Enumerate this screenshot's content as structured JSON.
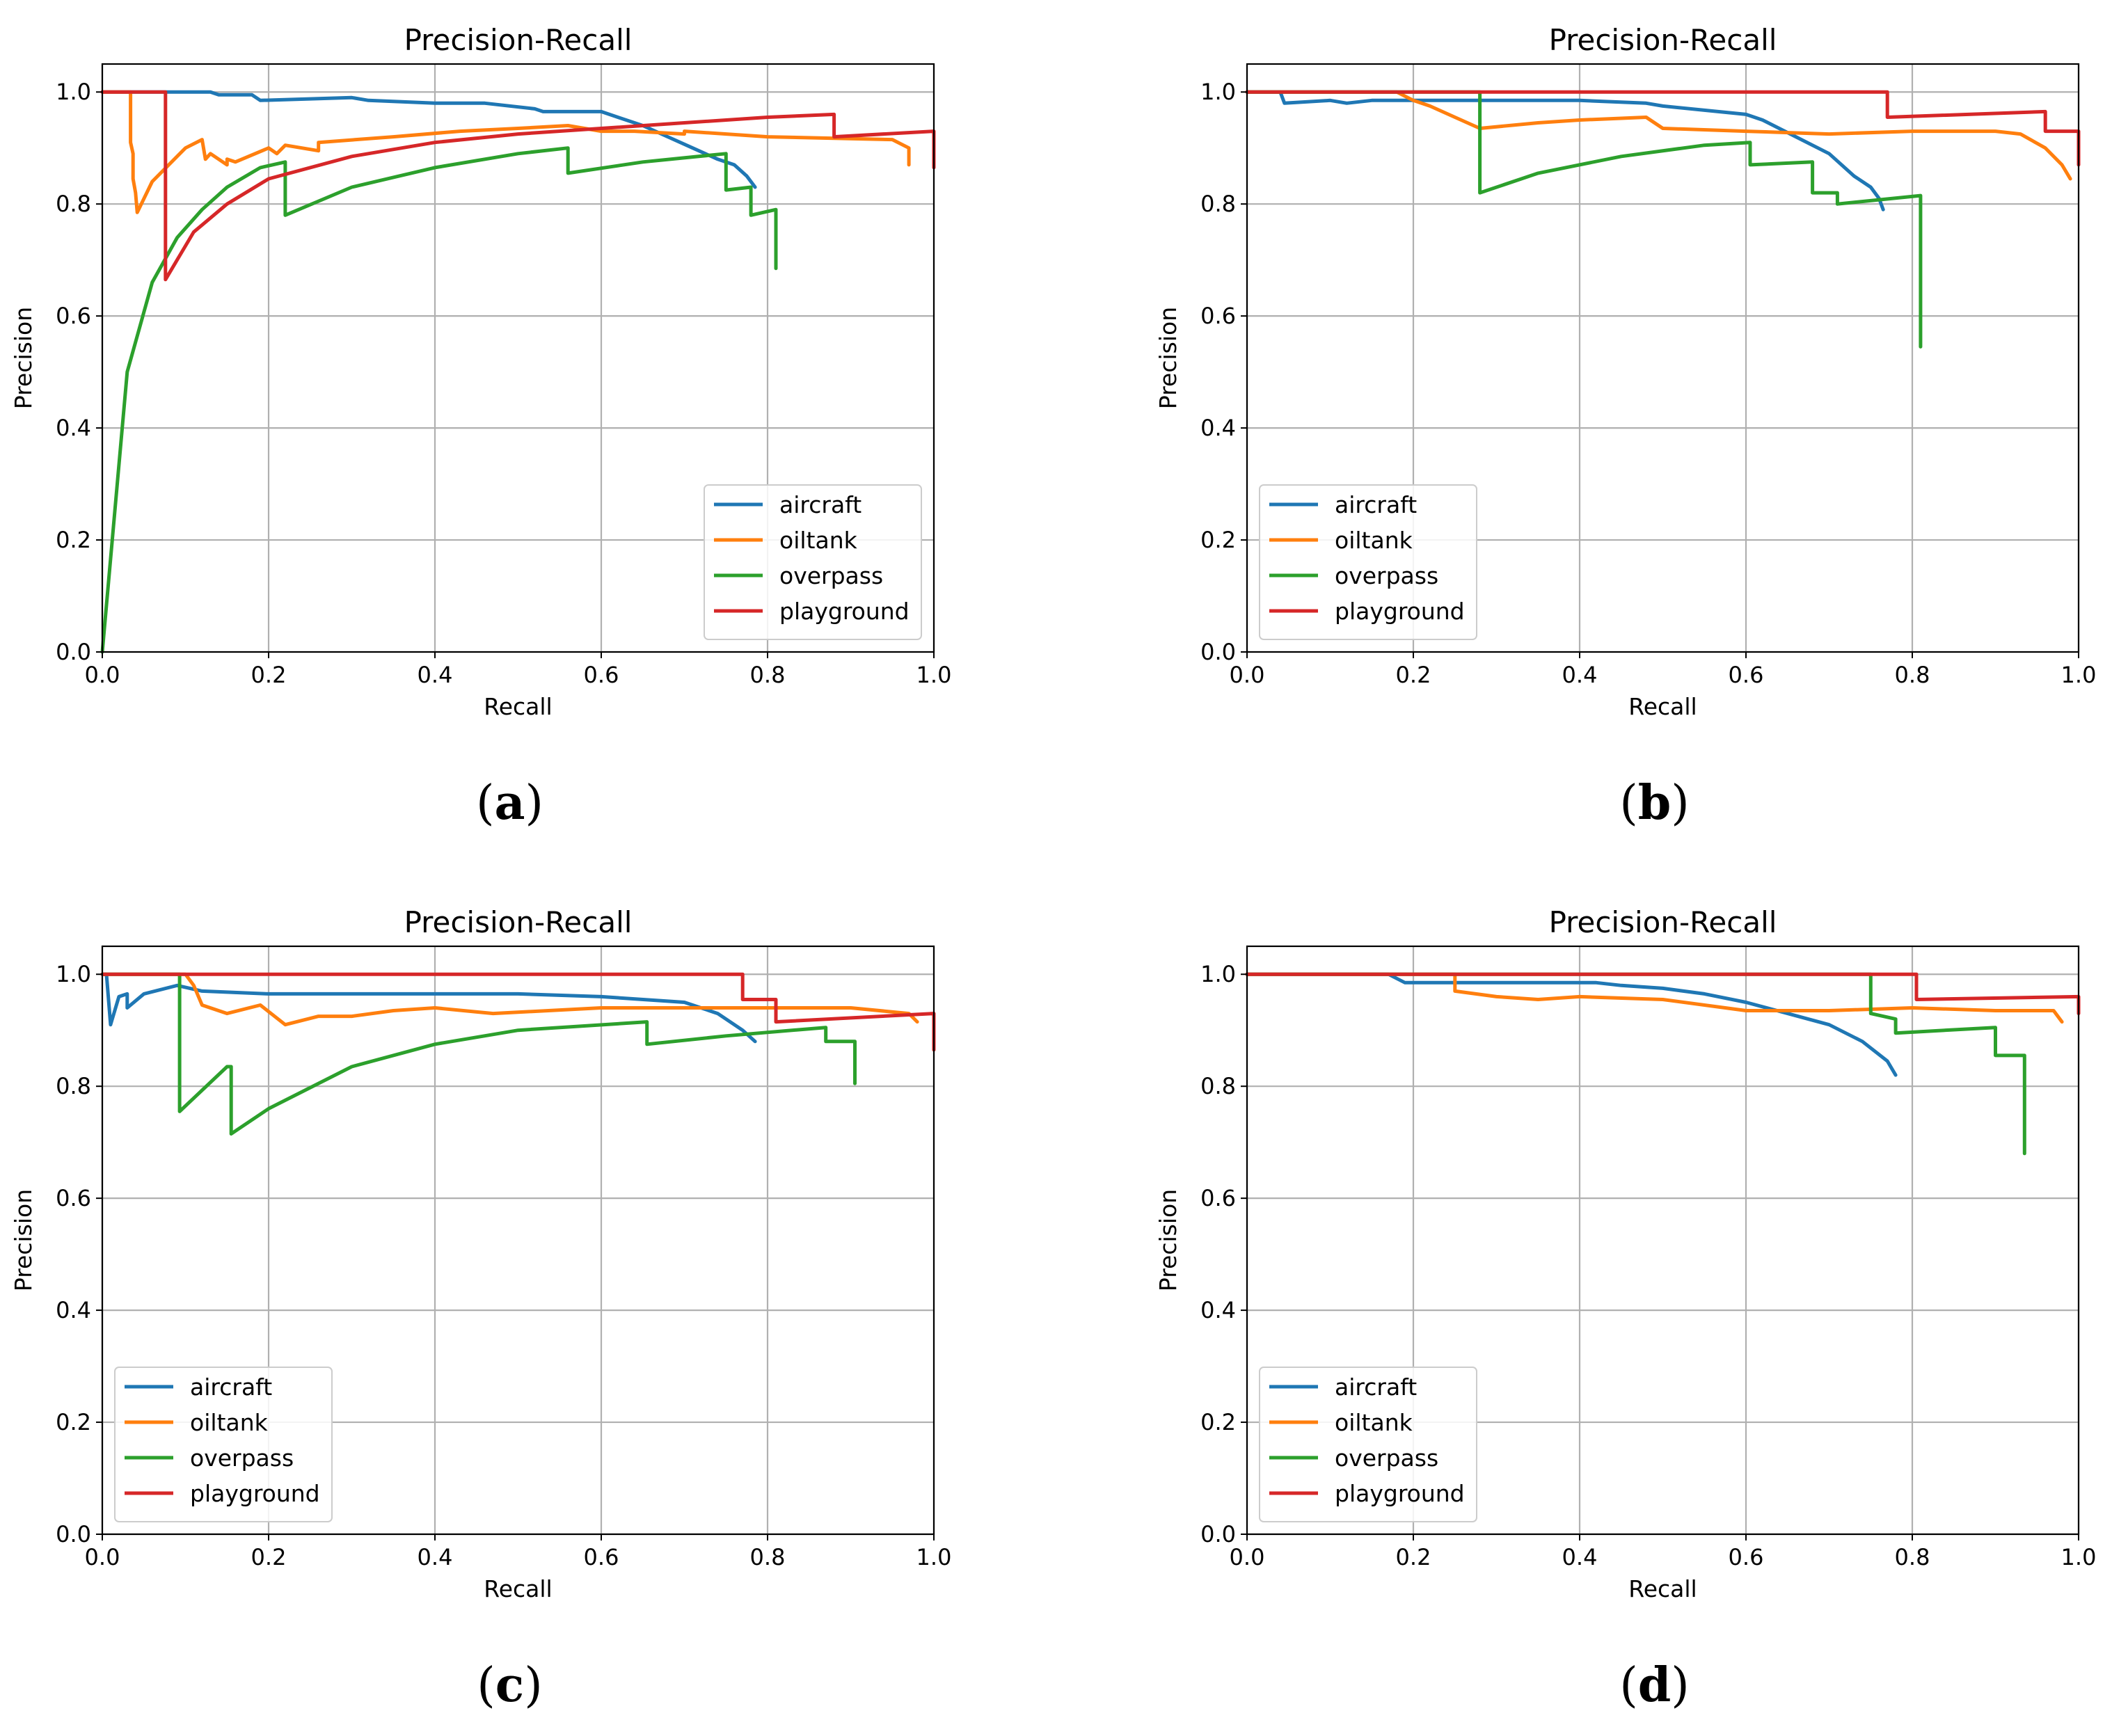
{
  "colors": {
    "aircraft": "#1f77b4",
    "oiltank": "#ff7f0e",
    "overpass": "#2ca02c",
    "playground": "#d62728"
  },
  "chart_data": [
    {
      "type": "line",
      "caption": "a",
      "title": "Precision-Recall",
      "xlabel": "Recall",
      "ylabel": "Precision",
      "xlim": [
        0,
        1
      ],
      "ylim": [
        0,
        1.05
      ],
      "xticks": [
        "0.0",
        "0.2",
        "0.4",
        "0.6",
        "0.8",
        "1.0"
      ],
      "yticks": [
        "0.0",
        "0.2",
        "0.4",
        "0.6",
        "0.8",
        "1.0"
      ],
      "grid": true,
      "legend": {
        "placement": "lower-right",
        "labels": [
          "aircraft",
          "oiltank",
          "overpass",
          "playground"
        ]
      },
      "series": [
        {
          "name": "aircraft",
          "x": [
            0.0,
            0.13,
            0.14,
            0.18,
            0.19,
            0.3,
            0.32,
            0.4,
            0.46,
            0.52,
            0.53,
            0.6,
            0.62,
            0.65,
            0.68,
            0.71,
            0.74,
            0.76,
            0.775,
            0.785
          ],
          "y": [
            1.0,
            1.0,
            0.995,
            0.995,
            0.985,
            0.99,
            0.985,
            0.98,
            0.98,
            0.97,
            0.965,
            0.965,
            0.955,
            0.94,
            0.92,
            0.9,
            0.88,
            0.87,
            0.85,
            0.83
          ]
        },
        {
          "name": "oiltank",
          "x": [
            0.0,
            0.034,
            0.034,
            0.037,
            0.037,
            0.04,
            0.042,
            0.06,
            0.1,
            0.12,
            0.124,
            0.13,
            0.15,
            0.15,
            0.16,
            0.2,
            0.21,
            0.22,
            0.26,
            0.26,
            0.35,
            0.43,
            0.5,
            0.56,
            0.6,
            0.64,
            0.7,
            0.7,
            0.8,
            0.95,
            0.97,
            0.97
          ],
          "y": [
            1.0,
            1.0,
            0.91,
            0.89,
            0.845,
            0.82,
            0.785,
            0.84,
            0.9,
            0.915,
            0.88,
            0.89,
            0.87,
            0.88,
            0.875,
            0.9,
            0.89,
            0.905,
            0.895,
            0.91,
            0.92,
            0.93,
            0.935,
            0.94,
            0.93,
            0.93,
            0.925,
            0.93,
            0.92,
            0.915,
            0.9,
            0.87
          ]
        },
        {
          "name": "overpass",
          "x": [
            0.0,
            0.03,
            0.06,
            0.09,
            0.12,
            0.15,
            0.19,
            0.22,
            0.22,
            0.3,
            0.4,
            0.5,
            0.56,
            0.56,
            0.65,
            0.75,
            0.75,
            0.78,
            0.78,
            0.81,
            0.81
          ],
          "y": [
            0.0,
            0.5,
            0.66,
            0.74,
            0.79,
            0.83,
            0.865,
            0.875,
            0.78,
            0.83,
            0.865,
            0.89,
            0.9,
            0.855,
            0.875,
            0.89,
            0.825,
            0.83,
            0.78,
            0.79,
            0.685
          ]
        },
        {
          "name": "playground",
          "x": [
            0.0,
            0.076,
            0.076,
            0.11,
            0.15,
            0.2,
            0.3,
            0.4,
            0.5,
            0.6,
            0.7,
            0.8,
            0.88,
            0.88,
            1.0,
            1.0
          ],
          "y": [
            1.0,
            1.0,
            0.665,
            0.75,
            0.8,
            0.845,
            0.885,
            0.91,
            0.925,
            0.935,
            0.945,
            0.955,
            0.96,
            0.92,
            0.93,
            0.865
          ]
        }
      ]
    },
    {
      "type": "line",
      "caption": "b",
      "title": "Precision-Recall",
      "xlabel": "Recall",
      "ylabel": "Precision",
      "xlim": [
        0,
        1
      ],
      "ylim": [
        0,
        1.05
      ],
      "xticks": [
        "0.0",
        "0.2",
        "0.4",
        "0.6",
        "0.8",
        "1.0"
      ],
      "yticks": [
        "0.0",
        "0.2",
        "0.4",
        "0.6",
        "0.8",
        "1.0"
      ],
      "grid": true,
      "legend": {
        "placement": "lower-left",
        "labels": [
          "aircraft",
          "oiltank",
          "overpass",
          "playground"
        ]
      },
      "series": [
        {
          "name": "aircraft",
          "x": [
            0.0,
            0.04,
            0.045,
            0.1,
            0.12,
            0.15,
            0.2,
            0.3,
            0.4,
            0.48,
            0.5,
            0.6,
            0.62,
            0.66,
            0.7,
            0.73,
            0.75,
            0.76,
            0.765
          ],
          "y": [
            1.0,
            1.0,
            0.98,
            0.985,
            0.98,
            0.985,
            0.985,
            0.985,
            0.985,
            0.98,
            0.975,
            0.96,
            0.95,
            0.92,
            0.89,
            0.85,
            0.83,
            0.81,
            0.79
          ]
        },
        {
          "name": "oiltank",
          "x": [
            0.0,
            0.18,
            0.2,
            0.22,
            0.25,
            0.28,
            0.35,
            0.4,
            0.48,
            0.5,
            0.6,
            0.7,
            0.8,
            0.9,
            0.93,
            0.96,
            0.98,
            0.99
          ],
          "y": [
            1.0,
            1.0,
            0.985,
            0.975,
            0.955,
            0.935,
            0.945,
            0.95,
            0.955,
            0.935,
            0.93,
            0.925,
            0.93,
            0.93,
            0.925,
            0.9,
            0.87,
            0.845
          ]
        },
        {
          "name": "overpass",
          "x": [
            0.0,
            0.28,
            0.28,
            0.35,
            0.45,
            0.55,
            0.605,
            0.605,
            0.68,
            0.68,
            0.71,
            0.71,
            0.81,
            0.81
          ],
          "y": [
            1.0,
            1.0,
            0.82,
            0.855,
            0.885,
            0.905,
            0.91,
            0.87,
            0.875,
            0.82,
            0.82,
            0.8,
            0.815,
            0.545
          ]
        },
        {
          "name": "playground",
          "x": [
            0.0,
            0.77,
            0.77,
            0.96,
            0.96,
            1.0,
            1.0
          ],
          "y": [
            1.0,
            1.0,
            0.955,
            0.965,
            0.93,
            0.93,
            0.87
          ]
        }
      ]
    },
    {
      "type": "line",
      "caption": "c",
      "title": "Precision-Recall",
      "xlabel": "Recall",
      "ylabel": "Precision",
      "xlim": [
        0,
        1
      ],
      "ylim": [
        0,
        1.05
      ],
      "xticks": [
        "0.0",
        "0.2",
        "0.4",
        "0.6",
        "0.8",
        "1.0"
      ],
      "yticks": [
        "0.0",
        "0.2",
        "0.4",
        "0.6",
        "0.8",
        "1.0"
      ],
      "grid": true,
      "legend": {
        "placement": "lower-left",
        "labels": [
          "aircraft",
          "oiltank",
          "overpass",
          "playground"
        ]
      },
      "series": [
        {
          "name": "aircraft",
          "x": [
            0.0,
            0.005,
            0.01,
            0.02,
            0.03,
            0.03,
            0.05,
            0.09,
            0.12,
            0.2,
            0.3,
            0.4,
            0.5,
            0.6,
            0.7,
            0.74,
            0.77,
            0.785
          ],
          "y": [
            1.0,
            1.0,
            0.91,
            0.96,
            0.965,
            0.94,
            0.965,
            0.98,
            0.97,
            0.965,
            0.965,
            0.965,
            0.965,
            0.96,
            0.95,
            0.93,
            0.9,
            0.88
          ]
        },
        {
          "name": "oiltank",
          "x": [
            0.0,
            0.1,
            0.11,
            0.12,
            0.15,
            0.19,
            0.22,
            0.26,
            0.3,
            0.35,
            0.4,
            0.47,
            0.6,
            0.7,
            0.8,
            0.9,
            0.97,
            0.98
          ],
          "y": [
            1.0,
            1.0,
            0.98,
            0.945,
            0.93,
            0.945,
            0.91,
            0.925,
            0.925,
            0.935,
            0.94,
            0.93,
            0.94,
            0.94,
            0.94,
            0.94,
            0.93,
            0.915
          ]
        },
        {
          "name": "overpass",
          "x": [
            0.0,
            0.093,
            0.093,
            0.15,
            0.155,
            0.155,
            0.2,
            0.3,
            0.4,
            0.5,
            0.655,
            0.655,
            0.75,
            0.87,
            0.87,
            0.905,
            0.905
          ],
          "y": [
            1.0,
            1.0,
            0.755,
            0.835,
            0.835,
            0.715,
            0.76,
            0.835,
            0.875,
            0.9,
            0.915,
            0.875,
            0.89,
            0.905,
            0.88,
            0.88,
            0.805
          ]
        },
        {
          "name": "playground",
          "x": [
            0.0,
            0.77,
            0.77,
            0.81,
            0.81,
            1.0,
            1.0
          ],
          "y": [
            1.0,
            1.0,
            0.955,
            0.955,
            0.915,
            0.93,
            0.865
          ]
        }
      ]
    },
    {
      "type": "line",
      "caption": "d",
      "title": "Precision-Recall",
      "xlabel": "Recall",
      "ylabel": "Precision",
      "xlim": [
        0,
        1
      ],
      "ylim": [
        0,
        1.05
      ],
      "xticks": [
        "0.0",
        "0.2",
        "0.4",
        "0.6",
        "0.8",
        "1.0"
      ],
      "yticks": [
        "0.0",
        "0.2",
        "0.4",
        "0.6",
        "0.8",
        "1.0"
      ],
      "grid": true,
      "legend": {
        "placement": "lower-left",
        "labels": [
          "aircraft",
          "oiltank",
          "overpass",
          "playground"
        ]
      },
      "series": [
        {
          "name": "aircraft",
          "x": [
            0.0,
            0.17,
            0.19,
            0.3,
            0.35,
            0.42,
            0.45,
            0.5,
            0.55,
            0.6,
            0.65,
            0.7,
            0.74,
            0.77,
            0.78
          ],
          "y": [
            1.0,
            1.0,
            0.985,
            0.985,
            0.985,
            0.985,
            0.98,
            0.975,
            0.965,
            0.95,
            0.93,
            0.91,
            0.88,
            0.845,
            0.82
          ]
        },
        {
          "name": "oiltank",
          "x": [
            0.0,
            0.25,
            0.25,
            0.3,
            0.35,
            0.4,
            0.5,
            0.6,
            0.7,
            0.8,
            0.9,
            0.97,
            0.98
          ],
          "y": [
            1.0,
            1.0,
            0.97,
            0.96,
            0.955,
            0.96,
            0.955,
            0.935,
            0.935,
            0.94,
            0.935,
            0.935,
            0.915
          ]
        },
        {
          "name": "overpass",
          "x": [
            0.0,
            0.75,
            0.75,
            0.78,
            0.78,
            0.9,
            0.9,
            0.935,
            0.935
          ],
          "y": [
            1.0,
            1.0,
            0.93,
            0.92,
            0.895,
            0.905,
            0.855,
            0.855,
            0.68
          ]
        },
        {
          "name": "playground",
          "x": [
            0.0,
            0.805,
            0.805,
            1.0,
            1.0
          ],
          "y": [
            1.0,
            1.0,
            0.955,
            0.96,
            0.93
          ]
        }
      ]
    }
  ]
}
